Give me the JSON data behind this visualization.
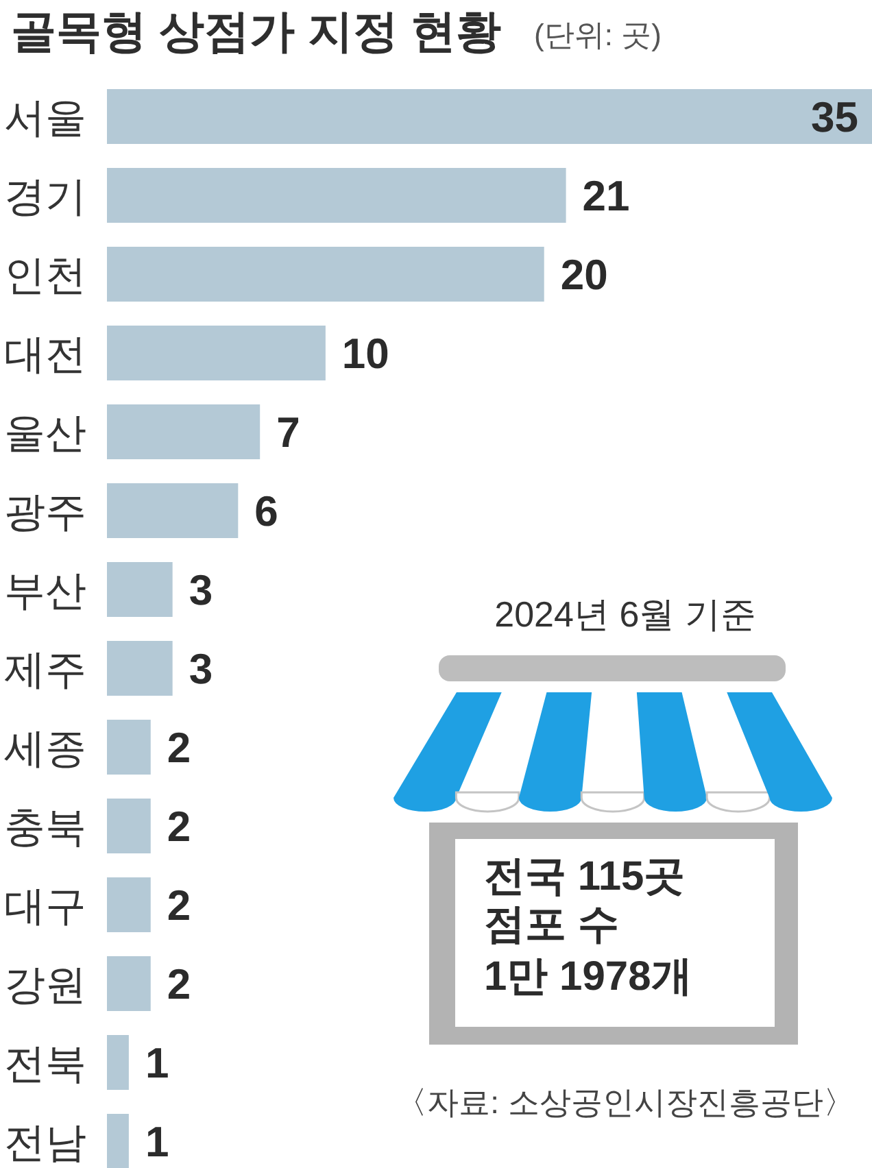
{
  "chart_data": {
    "type": "bar",
    "orientation": "horizontal",
    "title": "골목형 상점가 지정 현황",
    "subtitle": "(단위: 곳)",
    "categories": [
      "서울",
      "경기",
      "인천",
      "대전",
      "울산",
      "광주",
      "부산",
      "제주",
      "세종",
      "충북",
      "대구",
      "강원",
      "전북",
      "전남"
    ],
    "values": [
      35,
      21,
      20,
      10,
      7,
      6,
      3,
      3,
      2,
      2,
      2,
      2,
      1,
      1
    ],
    "color": "#b4c9d6",
    "data_labels": true,
    "annotations": [
      "2024년 6월 기준",
      "전국 115곳",
      "점포 수",
      "1만 1978개",
      "〈자료: 소상공인시장진흥공단〉"
    ]
  }
}
